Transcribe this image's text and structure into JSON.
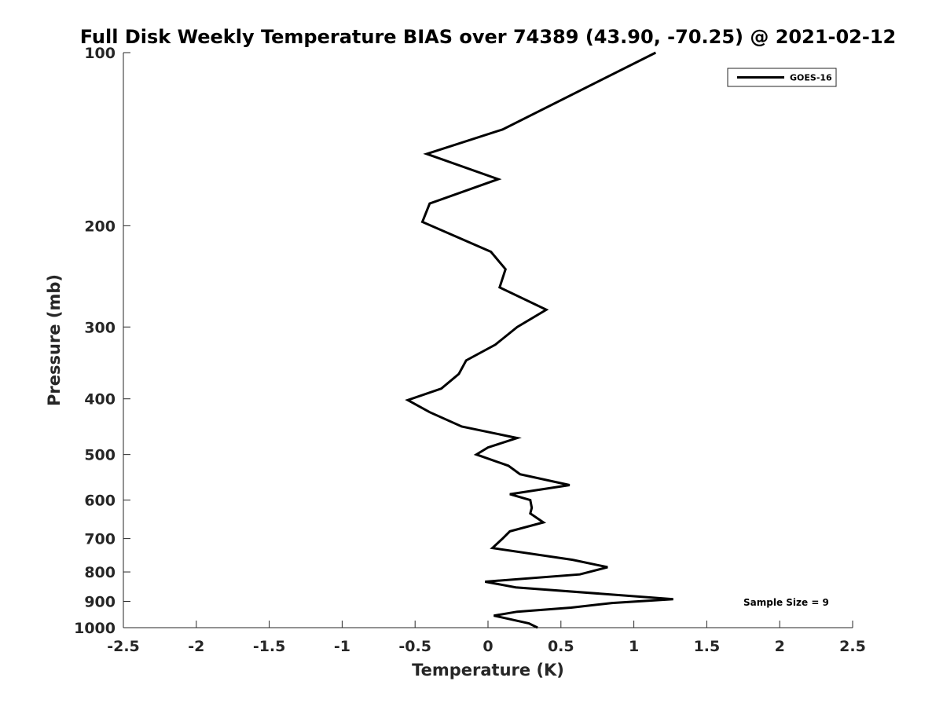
{
  "chart_data": {
    "type": "line",
    "title": "Full Disk Weekly Temperature BIAS over 74389 (43.90, -70.25) @ 2021-02-12",
    "xlabel": "Temperature (K)",
    "ylabel": "Pressure (mb)",
    "xlim": [
      -2.5,
      2.5
    ],
    "ylim": [
      100,
      1000
    ],
    "yscale": "log",
    "yreversed": true,
    "grid": false,
    "legend_position": "top-right",
    "xticks": [
      -2.5,
      -2,
      -1.5,
      -1,
      -0.5,
      0,
      0.5,
      1,
      1.5,
      2,
      2.5
    ],
    "xtick_labels": [
      "-2.5",
      "-2",
      "-1.5",
      "-1",
      "-0.5",
      "0",
      "0.5",
      "1",
      "1.5",
      "2",
      "2.5"
    ],
    "yticks": [
      100,
      200,
      300,
      400,
      500,
      600,
      700,
      800,
      900,
      1000
    ],
    "ytick_labels": [
      "100",
      "200",
      "300",
      "400",
      "500",
      "600",
      "700",
      "800",
      "900",
      "1000"
    ],
    "series": [
      {
        "name": "GOES-16",
        "color": "#000000",
        "points": [
          [
            1.15,
            100
          ],
          [
            0.1,
            136
          ],
          [
            -0.42,
            150
          ],
          [
            0.07,
            166
          ],
          [
            -0.4,
            183
          ],
          [
            -0.45,
            197
          ],
          [
            0.02,
            222
          ],
          [
            0.12,
            238
          ],
          [
            0.08,
            256
          ],
          [
            0.4,
            280
          ],
          [
            0.2,
            300
          ],
          [
            0.05,
            322
          ],
          [
            -0.15,
            343
          ],
          [
            -0.2,
            362
          ],
          [
            -0.32,
            384
          ],
          [
            -0.55,
            402
          ],
          [
            -0.4,
            422
          ],
          [
            -0.18,
            447
          ],
          [
            0.2,
            468
          ],
          [
            0.0,
            486
          ],
          [
            -0.08,
            500
          ],
          [
            0.14,
            523
          ],
          [
            0.22,
            541
          ],
          [
            0.56,
            565
          ],
          [
            0.15,
            586
          ],
          [
            0.29,
            600
          ],
          [
            0.3,
            619
          ],
          [
            0.29,
            633
          ],
          [
            0.38,
            656
          ],
          [
            0.15,
            680
          ],
          [
            0.1,
            700
          ],
          [
            0.03,
            727
          ],
          [
            0.58,
            762
          ],
          [
            0.82,
            785
          ],
          [
            0.63,
            808
          ],
          [
            -0.02,
            832
          ],
          [
            0.19,
            851
          ],
          [
            1.27,
            892
          ],
          [
            0.85,
            906
          ],
          [
            0.57,
            923
          ],
          [
            0.2,
            938
          ],
          [
            0.04,
            953
          ],
          [
            0.28,
            983
          ],
          [
            0.34,
            1000
          ]
        ]
      }
    ],
    "annotation": "Sample Size = 9"
  }
}
